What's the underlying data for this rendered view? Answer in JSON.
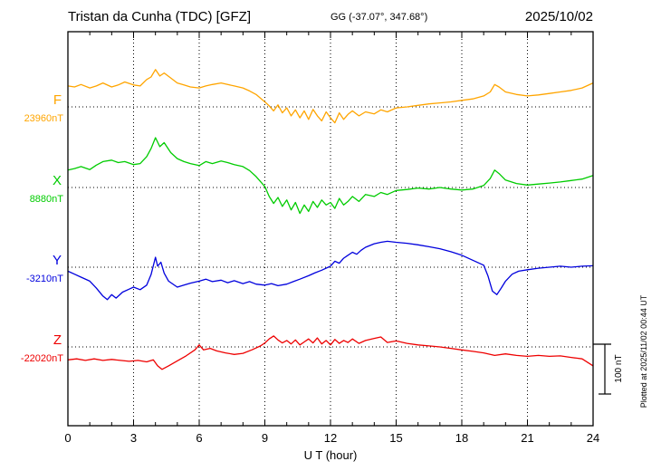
{
  "header": {
    "station_title": "Tristan da Cunha (TDC)  [GFZ]",
    "coords": "GG (-37.07°, 347.68°)",
    "date": "2025/10/02"
  },
  "side_note": "Plotted at 2025/11/02 00:44 UT",
  "scale_bar": {
    "label": "100 nT",
    "nT": 100
  },
  "chart_data": {
    "type": "line",
    "title": "Tristan da Cunha (TDC) [GFZ] magnetogram 2025/10/02",
    "xlabel": "U T (hour)",
    "xlim": [
      0,
      24
    ],
    "x_ticks": [
      0,
      3,
      6,
      9,
      12,
      15,
      18,
      21,
      24
    ],
    "grid": "dotted vertical every 3 h, dotted horizontal at each component baseline",
    "legend_position": "left baseline labels",
    "series": [
      {
        "name": "F",
        "baseline_label": "23960nT",
        "baseline_nT": 23960,
        "color": "#ffa500",
        "points": [
          [
            0,
            42
          ],
          [
            0.3,
            40
          ],
          [
            0.6,
            45
          ],
          [
            1,
            38
          ],
          [
            1.3,
            42
          ],
          [
            1.6,
            48
          ],
          [
            2,
            40
          ],
          [
            2.3,
            44
          ],
          [
            2.6,
            50
          ],
          [
            3,
            44
          ],
          [
            3.3,
            42
          ],
          [
            3.6,
            55
          ],
          [
            3.8,
            60
          ],
          [
            4,
            75
          ],
          [
            4.2,
            62
          ],
          [
            4.4,
            68
          ],
          [
            4.7,
            58
          ],
          [
            5,
            48
          ],
          [
            5.3,
            44
          ],
          [
            5.6,
            40
          ],
          [
            6,
            38
          ],
          [
            6.3,
            42
          ],
          [
            6.6,
            45
          ],
          [
            7,
            48
          ],
          [
            7.3,
            45
          ],
          [
            7.6,
            42
          ],
          [
            8,
            38
          ],
          [
            8.3,
            32
          ],
          [
            8.6,
            25
          ],
          [
            9,
            10
          ],
          [
            9.2,
            2
          ],
          [
            9.4,
            -8
          ],
          [
            9.6,
            4
          ],
          [
            9.8,
            -12
          ],
          [
            10,
            -2
          ],
          [
            10.2,
            -18
          ],
          [
            10.4,
            -6
          ],
          [
            10.6,
            -22
          ],
          [
            10.8,
            -8
          ],
          [
            11,
            -25
          ],
          [
            11.2,
            -5
          ],
          [
            11.4,
            -18
          ],
          [
            11.6,
            -28
          ],
          [
            11.8,
            -10
          ],
          [
            12,
            -22
          ],
          [
            12.2,
            -32
          ],
          [
            12.4,
            -12
          ],
          [
            12.6,
            -25
          ],
          [
            12.8,
            -15
          ],
          [
            13,
            -8
          ],
          [
            13.3,
            -18
          ],
          [
            13.6,
            -10
          ],
          [
            14,
            -14
          ],
          [
            14.3,
            -6
          ],
          [
            14.6,
            -10
          ],
          [
            15,
            -2
          ],
          [
            15.5,
            0
          ],
          [
            16,
            3
          ],
          [
            16.5,
            6
          ],
          [
            17,
            8
          ],
          [
            17.5,
            10
          ],
          [
            18,
            13
          ],
          [
            18.5,
            16
          ],
          [
            19,
            22
          ],
          [
            19.3,
            30
          ],
          [
            19.5,
            45
          ],
          [
            19.7,
            40
          ],
          [
            20,
            30
          ],
          [
            20.5,
            25
          ],
          [
            21,
            22
          ],
          [
            21.5,
            24
          ],
          [
            22,
            27
          ],
          [
            22.5,
            30
          ],
          [
            23,
            33
          ],
          [
            23.5,
            38
          ],
          [
            24,
            48
          ]
        ]
      },
      {
        "name": "X",
        "baseline_label": "8880nT",
        "baseline_nT": 8880,
        "color": "#00cc00",
        "points": [
          [
            0,
            35
          ],
          [
            0.3,
            38
          ],
          [
            0.6,
            42
          ],
          [
            1,
            36
          ],
          [
            1.3,
            45
          ],
          [
            1.6,
            52
          ],
          [
            2,
            55
          ],
          [
            2.3,
            50
          ],
          [
            2.6,
            52
          ],
          [
            3,
            46
          ],
          [
            3.3,
            48
          ],
          [
            3.6,
            62
          ],
          [
            3.8,
            78
          ],
          [
            4,
            100
          ],
          [
            4.2,
            82
          ],
          [
            4.4,
            90
          ],
          [
            4.7,
            70
          ],
          [
            5,
            58
          ],
          [
            5.3,
            52
          ],
          [
            5.6,
            48
          ],
          [
            6,
            44
          ],
          [
            6.3,
            52
          ],
          [
            6.6,
            48
          ],
          [
            7,
            53
          ],
          [
            7.3,
            50
          ],
          [
            7.6,
            46
          ],
          [
            8,
            42
          ],
          [
            8.3,
            34
          ],
          [
            8.6,
            22
          ],
          [
            9,
            2
          ],
          [
            9.2,
            -18
          ],
          [
            9.4,
            -32
          ],
          [
            9.6,
            -20
          ],
          [
            9.8,
            -38
          ],
          [
            10,
            -25
          ],
          [
            10.2,
            -45
          ],
          [
            10.4,
            -30
          ],
          [
            10.6,
            -52
          ],
          [
            10.8,
            -35
          ],
          [
            11,
            -48
          ],
          [
            11.2,
            -28
          ],
          [
            11.4,
            -40
          ],
          [
            11.6,
            -25
          ],
          [
            11.8,
            -35
          ],
          [
            12,
            -30
          ],
          [
            12.2,
            -42
          ],
          [
            12.4,
            -22
          ],
          [
            12.6,
            -35
          ],
          [
            12.8,
            -28
          ],
          [
            13,
            -18
          ],
          [
            13.3,
            -28
          ],
          [
            13.6,
            -14
          ],
          [
            14,
            -18
          ],
          [
            14.3,
            -10
          ],
          [
            14.6,
            -14
          ],
          [
            15,
            -6
          ],
          [
            15.5,
            -4
          ],
          [
            16,
            -1
          ],
          [
            16.5,
            -3
          ],
          [
            17,
            0
          ],
          [
            17.5,
            -3
          ],
          [
            18,
            -5
          ],
          [
            18.5,
            -3
          ],
          [
            19,
            4
          ],
          [
            19.3,
            18
          ],
          [
            19.5,
            35
          ],
          [
            19.7,
            28
          ],
          [
            20,
            15
          ],
          [
            20.5,
            8
          ],
          [
            21,
            5
          ],
          [
            21.5,
            7
          ],
          [
            22,
            9
          ],
          [
            22.5,
            11
          ],
          [
            23,
            14
          ],
          [
            23.5,
            17
          ],
          [
            24,
            24
          ]
        ]
      },
      {
        "name": "Y",
        "baseline_label": "-3210nT",
        "baseline_nT": -3210,
        "color": "#0000dd",
        "points": [
          [
            0,
            -8
          ],
          [
            0.3,
            -14
          ],
          [
            0.6,
            -20
          ],
          [
            1,
            -28
          ],
          [
            1.3,
            -42
          ],
          [
            1.6,
            -58
          ],
          [
            1.8,
            -65
          ],
          [
            2,
            -55
          ],
          [
            2.2,
            -62
          ],
          [
            2.5,
            -50
          ],
          [
            2.8,
            -44
          ],
          [
            3,
            -40
          ],
          [
            3.3,
            -45
          ],
          [
            3.6,
            -36
          ],
          [
            3.8,
            -15
          ],
          [
            4,
            20
          ],
          [
            4.1,
            2
          ],
          [
            4.25,
            10
          ],
          [
            4.4,
            -12
          ],
          [
            4.6,
            -28
          ],
          [
            5,
            -40
          ],
          [
            5.3,
            -36
          ],
          [
            5.6,
            -32
          ],
          [
            6,
            -28
          ],
          [
            6.3,
            -24
          ],
          [
            6.6,
            -29
          ],
          [
            7,
            -26
          ],
          [
            7.3,
            -31
          ],
          [
            7.6,
            -27
          ],
          [
            8,
            -33
          ],
          [
            8.3,
            -29
          ],
          [
            8.6,
            -34
          ],
          [
            9,
            -36
          ],
          [
            9.3,
            -33
          ],
          [
            9.6,
            -37
          ],
          [
            10,
            -34
          ],
          [
            10.3,
            -29
          ],
          [
            10.6,
            -24
          ],
          [
            11,
            -17
          ],
          [
            11.3,
            -11
          ],
          [
            11.6,
            -6
          ],
          [
            12,
            2
          ],
          [
            12.2,
            12
          ],
          [
            12.4,
            8
          ],
          [
            12.6,
            18
          ],
          [
            13,
            30
          ],
          [
            13.2,
            26
          ],
          [
            13.4,
            34
          ],
          [
            13.6,
            40
          ],
          [
            14,
            47
          ],
          [
            14.3,
            50
          ],
          [
            14.6,
            52
          ],
          [
            15,
            50
          ],
          [
            15.5,
            48
          ],
          [
            16,
            45
          ],
          [
            16.5,
            41
          ],
          [
            17,
            37
          ],
          [
            17.5,
            31
          ],
          [
            18,
            24
          ],
          [
            18.5,
            14
          ],
          [
            19,
            4
          ],
          [
            19.2,
            -18
          ],
          [
            19.4,
            -48
          ],
          [
            19.6,
            -55
          ],
          [
            19.8,
            -42
          ],
          [
            20,
            -28
          ],
          [
            20.3,
            -14
          ],
          [
            20.6,
            -8
          ],
          [
            21,
            -5
          ],
          [
            21.5,
            -2
          ],
          [
            22,
            0
          ],
          [
            22.5,
            2
          ],
          [
            23,
            0
          ],
          [
            23.5,
            2
          ],
          [
            24,
            3
          ]
        ]
      },
      {
        "name": "Z",
        "baseline_label": "-22020nT",
        "baseline_nT": -22020,
        "color": "#ee0000",
        "points": [
          [
            0,
            -26
          ],
          [
            0.4,
            -24
          ],
          [
            0.8,
            -27
          ],
          [
            1.2,
            -24
          ],
          [
            1.6,
            -27
          ],
          [
            2,
            -25
          ],
          [
            2.4,
            -27
          ],
          [
            2.8,
            -29
          ],
          [
            3.2,
            -27
          ],
          [
            3.6,
            -30
          ],
          [
            3.9,
            -26
          ],
          [
            4.1,
            -38
          ],
          [
            4.3,
            -45
          ],
          [
            4.6,
            -38
          ],
          [
            5,
            -28
          ],
          [
            5.4,
            -18
          ],
          [
            5.8,
            -6
          ],
          [
            6,
            4
          ],
          [
            6.2,
            -6
          ],
          [
            6.5,
            -3
          ],
          [
            6.8,
            -8
          ],
          [
            7.2,
            -12
          ],
          [
            7.6,
            -15
          ],
          [
            8,
            -13
          ],
          [
            8.4,
            -6
          ],
          [
            8.8,
            2
          ],
          [
            9,
            8
          ],
          [
            9.2,
            16
          ],
          [
            9.4,
            22
          ],
          [
            9.6,
            14
          ],
          [
            9.8,
            8
          ],
          [
            10,
            13
          ],
          [
            10.2,
            6
          ],
          [
            10.4,
            14
          ],
          [
            10.6,
            4
          ],
          [
            10.8,
            10
          ],
          [
            11,
            16
          ],
          [
            11.2,
            8
          ],
          [
            11.4,
            18
          ],
          [
            11.6,
            6
          ],
          [
            11.8,
            13
          ],
          [
            12,
            4
          ],
          [
            12.2,
            15
          ],
          [
            12.4,
            7
          ],
          [
            12.6,
            13
          ],
          [
            12.8,
            9
          ],
          [
            13,
            16
          ],
          [
            13.3,
            7
          ],
          [
            13.6,
            13
          ],
          [
            14,
            17
          ],
          [
            14.3,
            20
          ],
          [
            14.6,
            9
          ],
          [
            15,
            12
          ],
          [
            15.5,
            7
          ],
          [
            16,
            4
          ],
          [
            16.5,
            2
          ],
          [
            17,
            0
          ],
          [
            17.5,
            -3
          ],
          [
            18,
            -6
          ],
          [
            18.5,
            -9
          ],
          [
            19,
            -12
          ],
          [
            19.5,
            -17
          ],
          [
            20,
            -14
          ],
          [
            20.5,
            -17
          ],
          [
            21,
            -19
          ],
          [
            21.5,
            -17
          ],
          [
            22,
            -19
          ],
          [
            22.5,
            -18
          ],
          [
            23,
            -21
          ],
          [
            23.5,
            -24
          ],
          [
            24,
            -38
          ]
        ]
      }
    ]
  }
}
